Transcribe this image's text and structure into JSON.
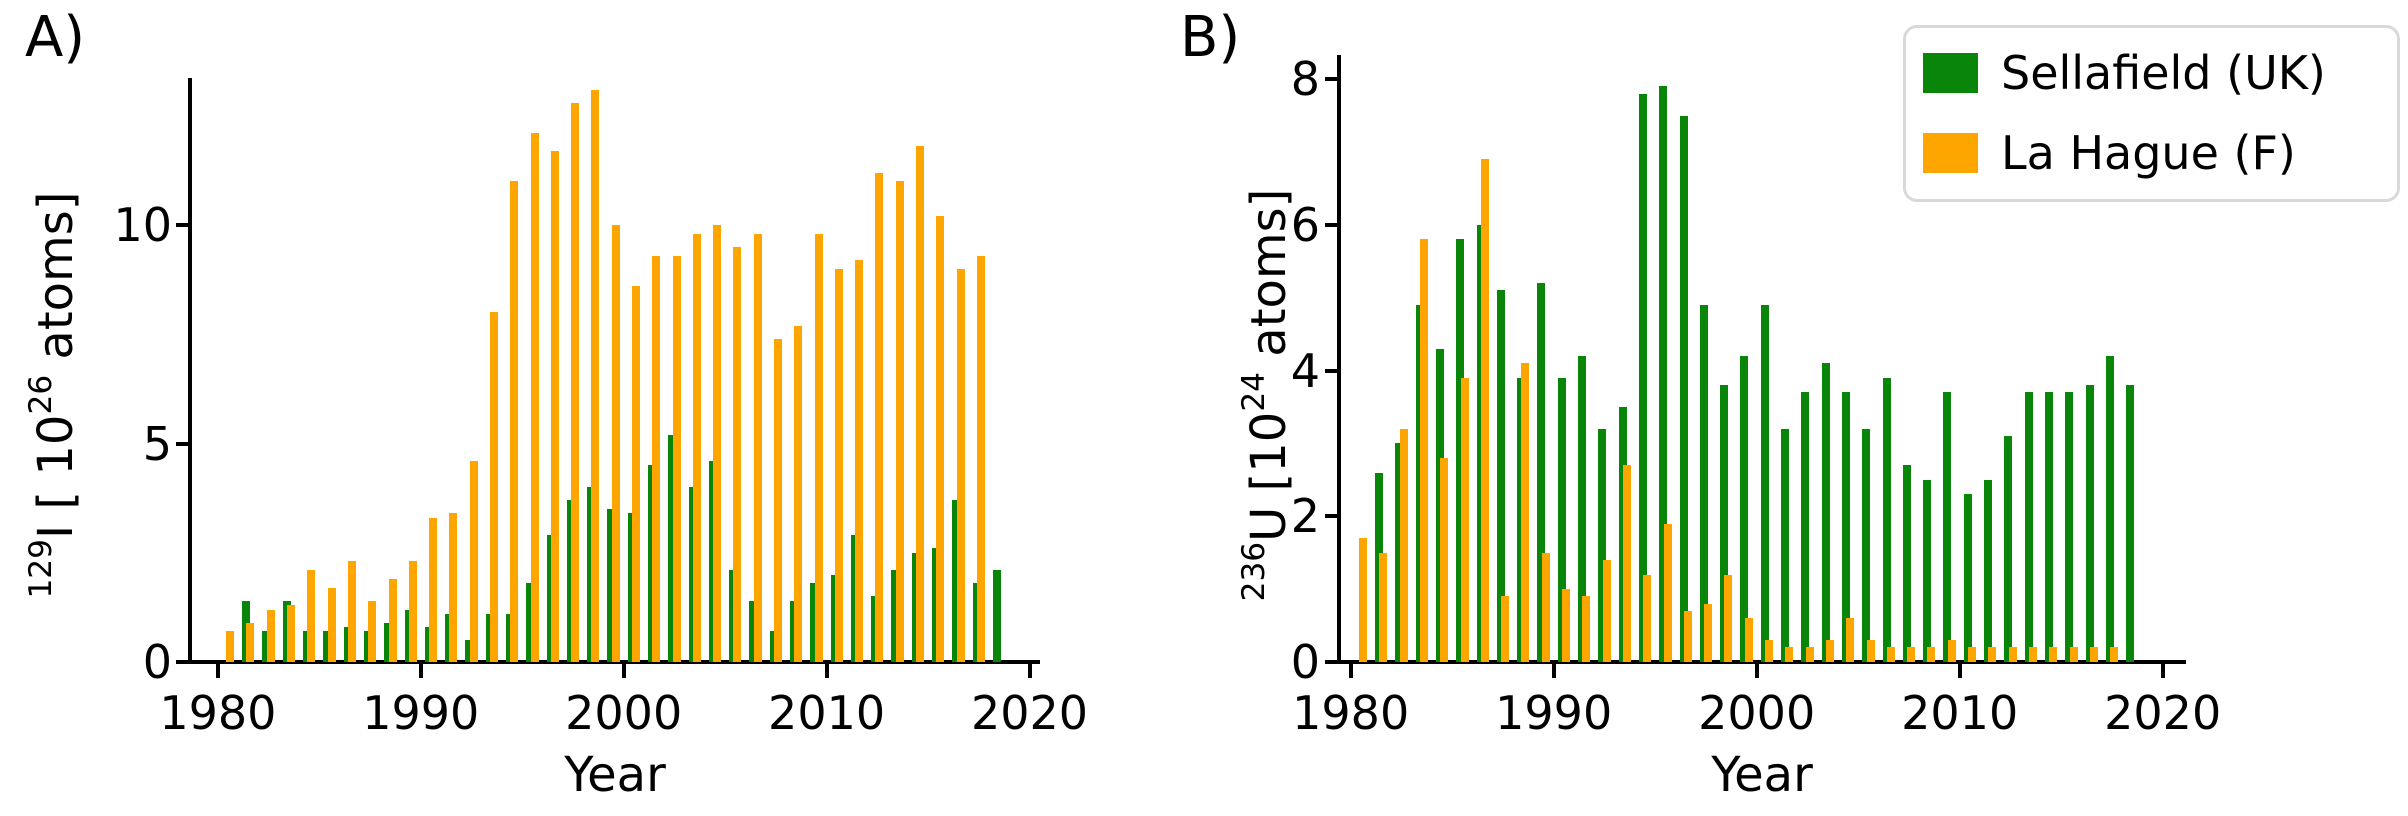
{
  "figure_title": "",
  "colors": {
    "sellafield_green": "#098509",
    "la_hague_orange": "#FFA500",
    "legend_border": "#d9d9d9",
    "axis_black": "#000000"
  },
  "panel_a": {
    "letter": "A)",
    "xlabel": "Year",
    "ylabel_runs": [
      {
        "t": "129",
        "sup": true
      },
      {
        "t": "I [ 10",
        "sup": false
      },
      {
        "t": "26",
        "sup": true
      },
      {
        "t": " atoms]",
        "sup": false
      }
    ]
  },
  "panel_b": {
    "letter": "B)",
    "xlabel": "Year",
    "ylabel_runs": [
      {
        "t": "236",
        "sup": true
      },
      {
        "t": "U [10",
        "sup": false
      },
      {
        "t": "24",
        "sup": true
      },
      {
        "t": " atoms]",
        "sup": false
      }
    ]
  },
  "legend": {
    "items": [
      {
        "label": "Sellafield (UK)",
        "color_key": "sellafield_green"
      },
      {
        "label": "La Hague (F)",
        "color_key": "la_hague_orange"
      }
    ]
  },
  "chart_data": [
    {
      "type": "bar",
      "panel": "A",
      "title": "",
      "xlabel": "Year",
      "ylabel": "129I [ 10^26 atoms]",
      "x_ticks": [
        1980,
        1990,
        2000,
        2010,
        2020
      ],
      "y_ticks": [
        0,
        5,
        10
      ],
      "xlim": [
        1978.6,
        2020.5
      ],
      "ylim": [
        0,
        13.4
      ],
      "grid": false,
      "legend_position": "upper right of figure",
      "categories": [
        1981,
        1982,
        1983,
        1984,
        1985,
        1986,
        1987,
        1988,
        1989,
        1990,
        1991,
        1992,
        1993,
        1994,
        1995,
        1996,
        1997,
        1998,
        1999,
        2000,
        2001,
        2002,
        2003,
        2004,
        2005,
        2006,
        2007,
        2008,
        2009,
        2010,
        2011,
        2012,
        2013,
        2014,
        2015,
        2016,
        2017,
        2018
      ],
      "series": [
        {
          "name": "Sellafield (UK)",
          "values": [
            1.4,
            0.7,
            1.4,
            0.7,
            0.7,
            0.8,
            0.7,
            0.9,
            1.2,
            0.8,
            1.1,
            0.5,
            1.1,
            1.1,
            1.8,
            2.9,
            3.7,
            4.0,
            3.5,
            3.4,
            4.5,
            5.2,
            4.0,
            4.6,
            2.1,
            1.4,
            0.7,
            1.4,
            1.8,
            2.0,
            2.9,
            1.5,
            2.1,
            2.5,
            2.6,
            3.7,
            1.8,
            2.1
          ]
        },
        {
          "name": "La Hague (F)",
          "values": [
            0.7,
            0.9,
            1.2,
            1.3,
            2.1,
            1.7,
            2.3,
            1.4,
            1.9,
            2.3,
            3.3,
            3.4,
            4.6,
            8.0,
            11.0,
            12.1,
            11.7,
            12.8,
            13.1,
            10.0,
            8.6,
            9.3,
            9.3,
            9.8,
            10.0,
            9.5,
            9.8,
            7.4,
            7.7,
            9.8,
            9.0,
            9.2,
            11.2,
            11.0,
            11.8,
            10.2,
            9.0,
            9.3
          ]
        }
      ]
    },
    {
      "type": "bar",
      "panel": "B",
      "title": "",
      "xlabel": "Year",
      "ylabel": "236U [10^24 atoms]",
      "x_ticks": [
        1980,
        1990,
        2000,
        2010,
        2020
      ],
      "y_ticks": [
        0,
        2,
        4,
        6,
        8
      ],
      "xlim": [
        1979.4,
        2021.2
      ],
      "ylim": [
        0,
        8.33
      ],
      "grid": false,
      "legend_position": "upper right of figure",
      "categories": [
        1981,
        1982,
        1983,
        1984,
        1985,
        1986,
        1987,
        1988,
        1989,
        1990,
        1991,
        1992,
        1993,
        1994,
        1995,
        1996,
        1997,
        1998,
        1999,
        2000,
        2001,
        2002,
        2003,
        2004,
        2005,
        2006,
        2007,
        2008,
        2009,
        2010,
        2011,
        2012,
        2013,
        2014,
        2015,
        2016,
        2017,
        2018
      ],
      "series": [
        {
          "name": "Sellafield (UK)",
          "values": [
            2.6,
            3.0,
            4.9,
            4.3,
            5.8,
            6.0,
            5.1,
            3.9,
            5.2,
            3.9,
            4.2,
            3.2,
            3.5,
            7.8,
            7.9,
            7.5,
            4.9,
            3.8,
            4.2,
            4.9,
            3.2,
            3.7,
            4.1,
            3.7,
            3.2,
            3.9,
            2.7,
            2.5,
            3.7,
            2.3,
            2.5,
            3.1,
            3.7,
            3.7,
            3.7,
            3.8,
            4.2,
            3.8
          ]
        },
        {
          "name": "La Hague (F)",
          "values": [
            1.7,
            1.5,
            3.2,
            5.8,
            2.8,
            3.9,
            6.9,
            0.9,
            4.1,
            1.5,
            1.0,
            0.9,
            1.4,
            2.7,
            1.2,
            1.9,
            0.7,
            0.8,
            1.2,
            0.6,
            0.3,
            0.2,
            0.2,
            0.3,
            0.6,
            0.3,
            0.2,
            0.2,
            0.2,
            0.3,
            0.2,
            0.2,
            0.2,
            0.2,
            0.2,
            0.2,
            0.2,
            0.2
          ]
        }
      ]
    }
  ]
}
